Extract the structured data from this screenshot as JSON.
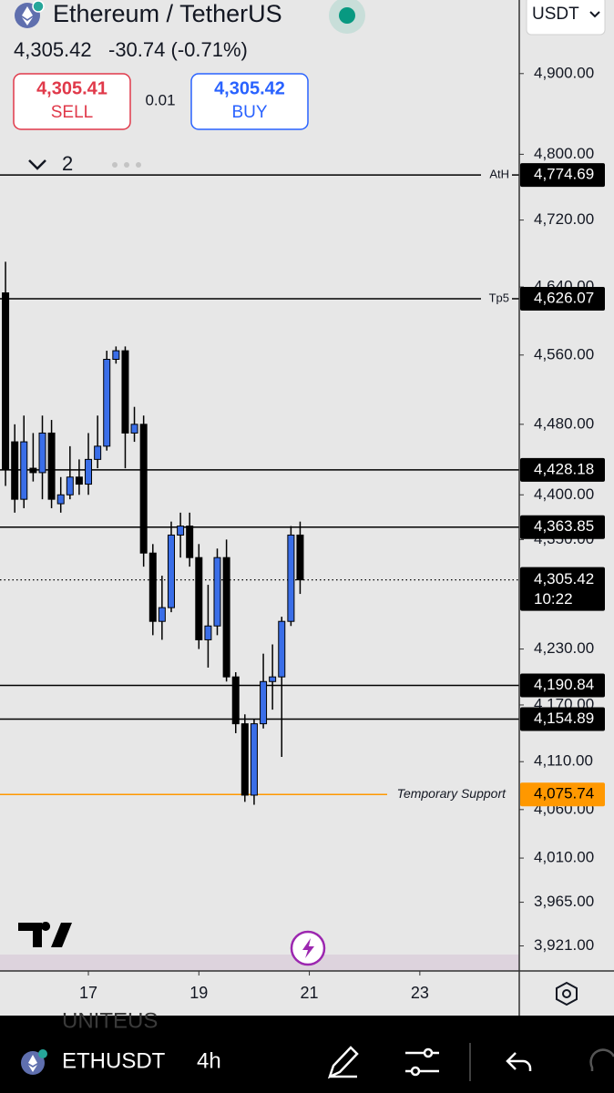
{
  "header": {
    "symbol_title": "Ethereum / TetherUS",
    "price": "4,305.42",
    "change": "-30.74 (-0.71%)",
    "sell_price": "4,305.41",
    "sell_label": "SELL",
    "spread": "0.01",
    "buy_price": "4,305.42",
    "buy_label": "BUY",
    "currency": "USDT",
    "indicator_count": "2"
  },
  "chart_data": {
    "type": "candlestick",
    "log_scale": true,
    "x": [
      15.5,
      15.667,
      15.833,
      16,
      16.167,
      16.333,
      16.5,
      16.667,
      16.833,
      17,
      17.167,
      17.333,
      17.5,
      17.667,
      17.833,
      18,
      18.167,
      18.333,
      18.5,
      18.667,
      18.833,
      19,
      19.167,
      19.333,
      19.5,
      19.667,
      19.833,
      20,
      20.167,
      20.333,
      20.5,
      20.667,
      20.833
    ],
    "open": [
      4633,
      4460,
      4395,
      4430,
      4425,
      4470,
      4390,
      4400,
      4420,
      4412,
      4440,
      4455,
      4555,
      4565,
      4470,
      4480,
      4335,
      4260,
      4275,
      4355,
      4365,
      4330,
      4240,
      4255,
      4330,
      4200,
      4150,
      4075,
      4150,
      4195,
      4200,
      4260,
      4355
    ],
    "high": [
      4670,
      4480,
      4490,
      4470,
      4490,
      4485,
      4420,
      4455,
      4440,
      4470,
      4490,
      4565,
      4570,
      4570,
      4500,
      4490,
      4345,
      4310,
      4370,
      4380,
      4380,
      4345,
      4300,
      4340,
      4350,
      4205,
      4160,
      4155,
      4225,
      4235,
      4265,
      4365,
      4370
    ],
    "low": [
      4410,
      4380,
      4385,
      4415,
      4395,
      4385,
      4380,
      4395,
      4400,
      4400,
      4430,
      4450,
      4550,
      4430,
      4460,
      4320,
      4245,
      4240,
      4270,
      4330,
      4320,
      4230,
      4210,
      4245,
      4195,
      4140,
      4068,
      4065,
      4145,
      4165,
      4115,
      4255,
      4290
    ],
    "close": [
      4429,
      4395,
      4460,
      4425,
      4470,
      4395,
      4400,
      4420,
      4412,
      4440,
      4455,
      4555,
      4565,
      4470,
      4480,
      4335,
      4260,
      4275,
      4355,
      4365,
      4330,
      4240,
      4255,
      4330,
      4200,
      4150,
      4075,
      4150,
      4195,
      4200,
      4260,
      4355,
      4305.42
    ],
    "up_color": "#3a6ee8",
    "down_color": "#000000",
    "xlim": [
      15.4,
      24.8
    ],
    "xticks": [
      17,
      19,
      21,
      23
    ],
    "ylim": [
      3896,
      4993
    ],
    "yticks": [
      {
        "value": 4900,
        "label": "4,900.00"
      },
      {
        "value": 4800,
        "label": "4,800.00"
      },
      {
        "value": 4720,
        "label": "4,720.00"
      },
      {
        "value": 4640,
        "label": "4,640.00"
      },
      {
        "value": 4560,
        "label": "4,560.00"
      },
      {
        "value": 4480,
        "label": "4,480.00"
      },
      {
        "value": 4400,
        "label": "4,400.00"
      },
      {
        "value": 4350,
        "label": "4,350.00"
      },
      {
        "value": 4230,
        "label": "4,230.00"
      },
      {
        "value": 4170,
        "label": "4,170.00"
      },
      {
        "value": 4110,
        "label": "4,110.00"
      },
      {
        "value": 4060,
        "label": "4,060.00"
      },
      {
        "value": 4010,
        "label": "4,010.00"
      },
      {
        "value": 3965,
        "label": "3,965.00"
      },
      {
        "value": 3921,
        "label": "3,921.00"
      }
    ],
    "levels": [
      {
        "name": "AtH",
        "value": 4774.69,
        "label": "4,774.69",
        "color": "#000000"
      },
      {
        "name": "Tp5",
        "value": 4626.07,
        "label": "4,626.07",
        "color": "#000000"
      },
      {
        "value": 4428.18,
        "label": "4,428.18",
        "color": "#000000"
      },
      {
        "value": 4363.85,
        "label": "4,363.85",
        "color": "#000000"
      },
      {
        "value": 4190.84,
        "label": "4,190.84",
        "color": "#000000"
      },
      {
        "value": 4154.89,
        "label": "4,154.89",
        "color": "#000000"
      },
      {
        "name": "Temporary Support",
        "value": 4075.74,
        "label": "4,075.74",
        "color": "#ff9800"
      }
    ],
    "current_price": {
      "value": 4305.42,
      "label": "4,305.42",
      "countdown": "10:22"
    }
  },
  "footer": {
    "watermark": "UNITEUS",
    "symbol": "ETHUSDT",
    "interval": "4h"
  }
}
